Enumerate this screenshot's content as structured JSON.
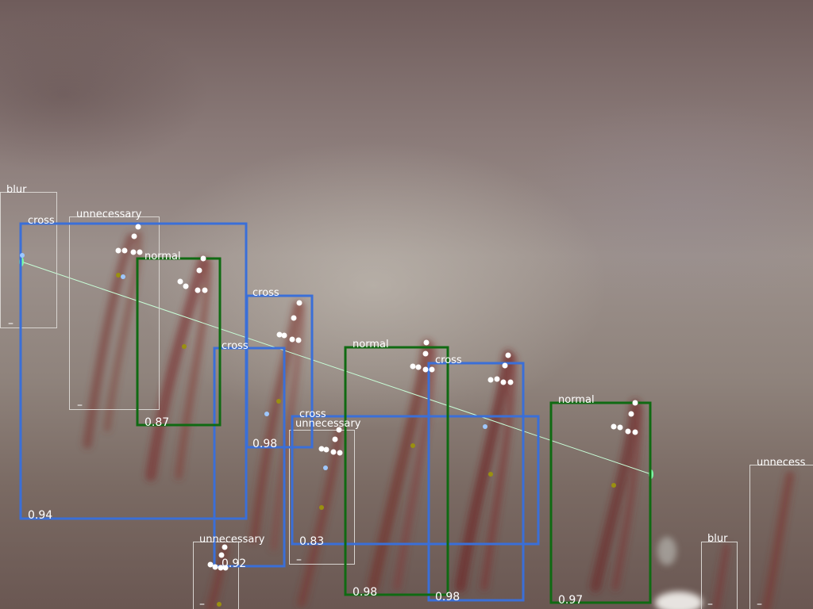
{
  "image": {
    "description_colors": {
      "blue_box": "#3a6fd8",
      "green_box": "#0f6a12",
      "gray_box": "#d8d4d0",
      "line": "#c8ffd8",
      "keypoint": "#ffffff",
      "keypoint_blue": "#9ec8ff",
      "keypoint_olive": "#9a9010"
    }
  },
  "detections": [
    {
      "label": "blur",
      "score": "–",
      "kind": "gray"
    },
    {
      "label": "cross",
      "score": "0.94",
      "kind": "blue"
    },
    {
      "label": "unnecessary",
      "score": "–",
      "kind": "gray"
    },
    {
      "label": "normal",
      "score": "0.87",
      "kind": "green"
    },
    {
      "label": "cross",
      "score": "0.98",
      "kind": "blue"
    },
    {
      "label": "cross",
      "score": "0.92",
      "kind": "blue"
    },
    {
      "label": "normal",
      "score": "0.98",
      "kind": "green"
    },
    {
      "label": "cross",
      "score": "0.98",
      "kind": "blue"
    },
    {
      "label": "cross",
      "score": "0.83",
      "kind": "blue"
    },
    {
      "label": "unnecessary",
      "score": "–",
      "kind": "gray"
    },
    {
      "label": "normal",
      "score": "0.97",
      "kind": "green"
    },
    {
      "label": "unnecessary",
      "score": "–",
      "kind": "gray"
    },
    {
      "label": "blur",
      "score": "–",
      "kind": "gray"
    },
    {
      "label": "unnecess",
      "score": "–",
      "kind": "gray"
    }
  ]
}
